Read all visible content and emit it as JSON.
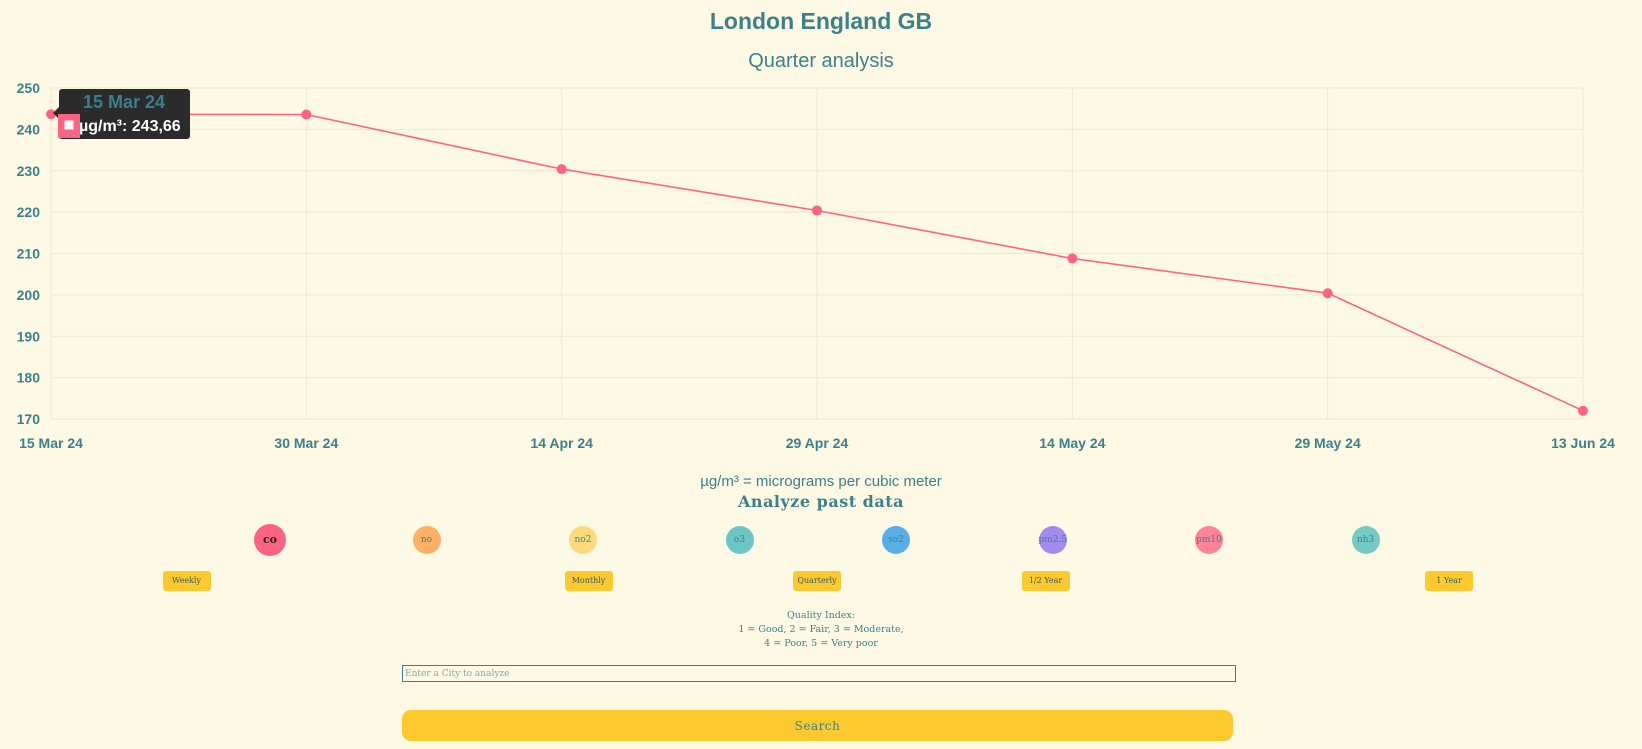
{
  "header": {
    "title": "London England GB",
    "subtitle": "Quarter analysis"
  },
  "tooltip": {
    "title": "15 Mar 24",
    "label": "µg/m³: 243,66"
  },
  "unit_note": "µg/m³ = micrograms per cubic meter",
  "analyze": {
    "title": "Analyze past data",
    "pollutants": [
      {
        "label": "co",
        "color": "#ff6384",
        "active": true
      },
      {
        "label": "no",
        "color": "#ffb062"
      },
      {
        "label": "no2",
        "color": "#ffd97a"
      },
      {
        "label": "o3",
        "color": "#6cc6c6"
      },
      {
        "label": "so2",
        "color": "#5aaee6"
      },
      {
        "label": "pm2.5",
        "color": "#a58bf0"
      },
      {
        "label": "pm10",
        "color": "#ff8499"
      },
      {
        "label": "nh3",
        "color": "#74cbc4"
      }
    ],
    "periods": [
      "Weekly",
      "Monthly",
      "Quarterly",
      "1/2 Year",
      "1 Year"
    ]
  },
  "quality_index": {
    "line1": "Quality Index:",
    "line2": "1 = Good, 2 = Fair, 3 = Moderate,",
    "line3": "4 = Poor, 5 = Very poor"
  },
  "search": {
    "placeholder": "Enter a City to analyze",
    "button_label": "Search"
  },
  "colors": {
    "accent": "#3a8189",
    "line": "#ff6384",
    "button": "#fcca2f",
    "background": "#fef9e5"
  },
  "chart_data": {
    "type": "line",
    "title": "Quarter analysis",
    "x": [
      "15 Mar 24",
      "30 Mar 24",
      "14 Apr 24",
      "29 Apr 24",
      "14 May 24",
      "29 May 24",
      "13 Jun 24"
    ],
    "series": [
      {
        "name": "µg/m³",
        "values": [
          243.66,
          243.6,
          230.4,
          220.4,
          208.8,
          200.4,
          172.0
        ]
      }
    ],
    "ylim": [
      170,
      250
    ],
    "yticks": [
      170,
      180,
      190,
      200,
      210,
      220,
      230,
      240,
      250
    ],
    "grid": true,
    "legend": "none"
  }
}
